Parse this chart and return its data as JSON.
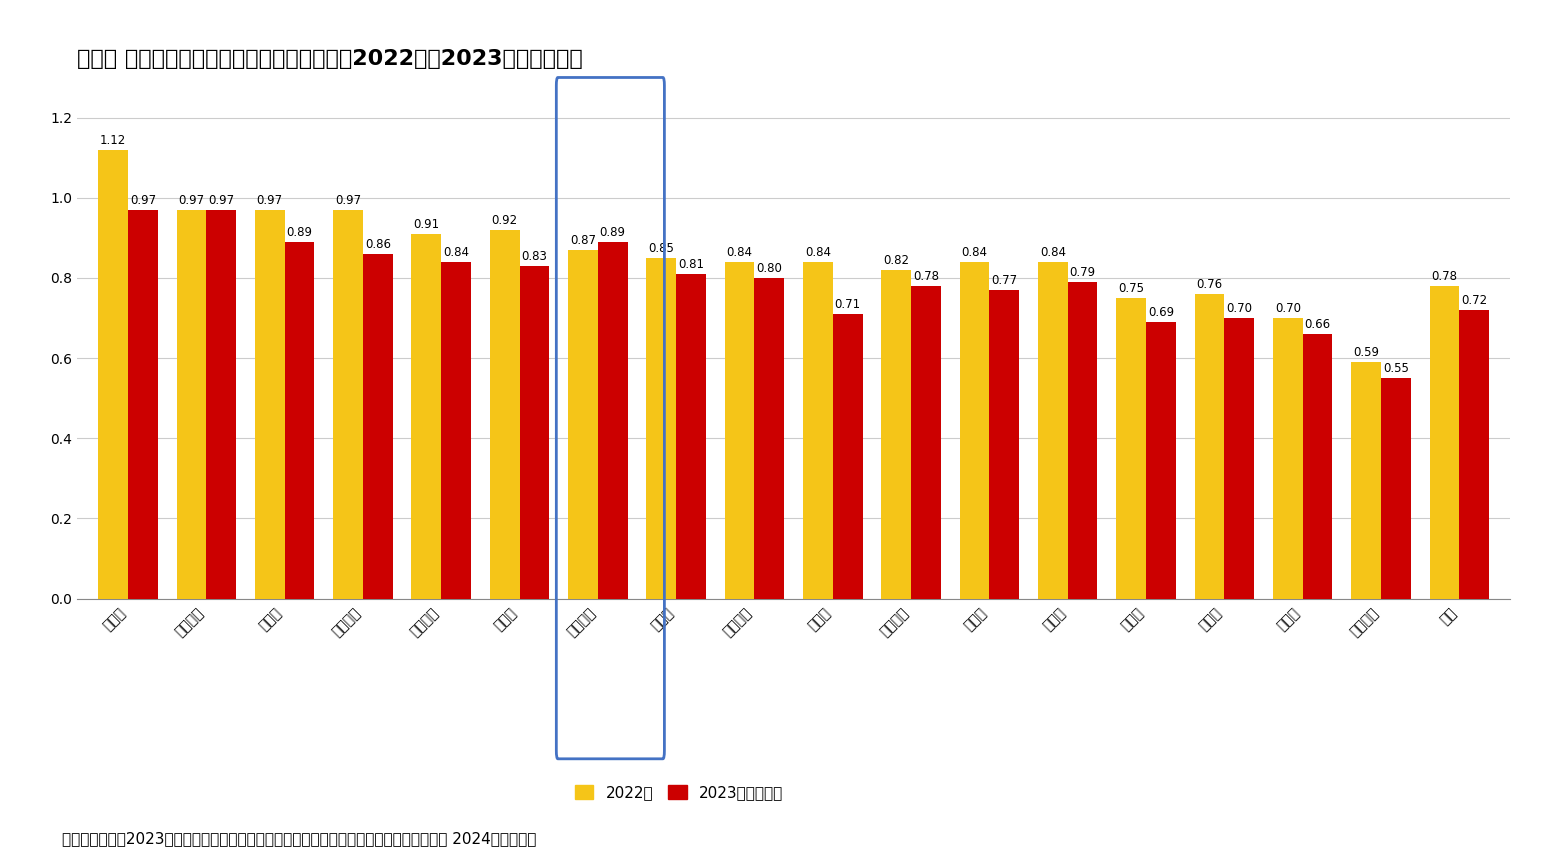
{
  "title": "図表２ 韓国における地域別合計特殊出生率（2022年と2023年（暫定））",
  "categories": [
    "世宗市",
    "全羅南道",
    "江原道",
    "慶尚北道",
    "忠清南道",
    "済州道",
    "忠清北道",
    "蔚山市",
    "慶尚南道",
    "光州市",
    "全羅北道",
    "京畿道",
    "大田市",
    "仁川市",
    "大邱市",
    "釜山市",
    "ソウル市",
    "全国"
  ],
  "values_2022": [
    1.12,
    0.97,
    0.97,
    0.97,
    0.91,
    0.92,
    0.87,
    0.85,
    0.84,
    0.84,
    0.82,
    0.84,
    0.84,
    0.75,
    0.76,
    0.7,
    0.59,
    0.78
  ],
  "values_2023": [
    0.97,
    0.97,
    0.89,
    0.86,
    0.84,
    0.83,
    0.89,
    0.81,
    0.8,
    0.71,
    0.78,
    0.77,
    0.79,
    0.69,
    0.7,
    0.66,
    0.55,
    0.72
  ],
  "color_2022": "#F5C518",
  "color_2023": "#CC0000",
  "ylabel_values": [
    0.0,
    0.2,
    0.4,
    0.6,
    0.8,
    1.0,
    1.2
  ],
  "ylim": [
    0,
    1.28
  ],
  "highlight_index": 6,
  "legend_2022": "2022年",
  "legend_2023": "2023年（暫定）",
  "source_text": "出所）統計庁「2023年人口動向調査出生・死亡統計（暫定）」より筆者作成、最終利用日 2024年３月１日",
  "background_color": "#FFFFFF",
  "grid_color": "#CCCCCC",
  "title_fontsize": 16,
  "axis_fontsize": 10,
  "bar_label_fontsize": 8.5,
  "legend_fontsize": 11,
  "source_fontsize": 11,
  "box_color": "#4472C4"
}
